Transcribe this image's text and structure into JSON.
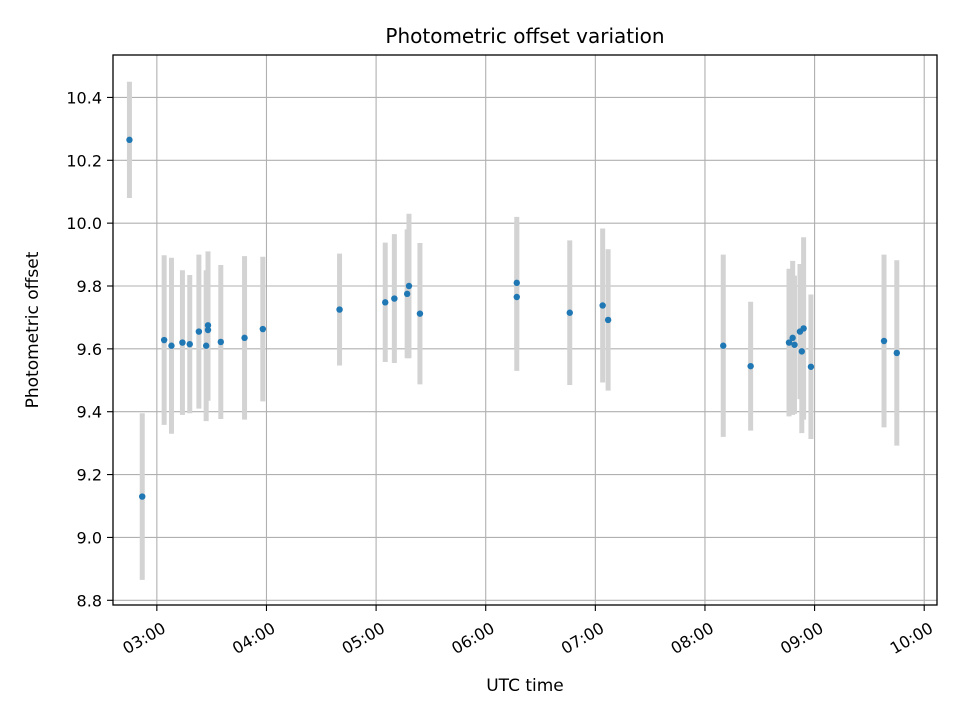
{
  "chart_data": {
    "type": "scatter",
    "title": "Photometric offset variation",
    "xlabel": "UTC time",
    "ylabel": "Photometric offset",
    "xlim": [
      "02:36",
      "10:07"
    ],
    "ylim": [
      8.785,
      10.535
    ],
    "x_ticks": [
      "03:00",
      "04:00",
      "05:00",
      "06:00",
      "07:00",
      "08:00",
      "09:00",
      "10:00"
    ],
    "y_ticks": [
      8.8,
      9.0,
      9.2,
      9.4,
      9.6,
      9.8,
      10.0,
      10.2,
      10.4
    ],
    "grid": true,
    "marker_color": "#1f77b4",
    "errorbar_color": "#d3d3d3",
    "points": [
      {
        "x": "02:45",
        "y": 10.265,
        "err": 0.185
      },
      {
        "x": "02:52",
        "y": 9.13,
        "err": 0.265
      },
      {
        "x": "03:04",
        "y": 9.628,
        "err": 0.27
      },
      {
        "x": "03:08",
        "y": 9.61,
        "err": 0.28
      },
      {
        "x": "03:14",
        "y": 9.62,
        "err": 0.23
      },
      {
        "x": "03:18",
        "y": 9.615,
        "err": 0.22
      },
      {
        "x": "03:23",
        "y": 9.655,
        "err": 0.245
      },
      {
        "x": "03:27",
        "y": 9.61,
        "err": 0.24
      },
      {
        "x": "03:28",
        "y": 9.675,
        "err": 0.235
      },
      {
        "x": "03:28",
        "y": 9.66,
        "err": 0.225
      },
      {
        "x": "03:35",
        "y": 9.622,
        "err": 0.245
      },
      {
        "x": "03:48",
        "y": 9.635,
        "err": 0.26
      },
      {
        "x": "03:58",
        "y": 9.663,
        "err": 0.23
      },
      {
        "x": "04:40",
        "y": 9.725,
        "err": 0.178
      },
      {
        "x": "05:05",
        "y": 9.748,
        "err": 0.19
      },
      {
        "x": "05:10",
        "y": 9.76,
        "err": 0.205
      },
      {
        "x": "05:17",
        "y": 9.775,
        "err": 0.205
      },
      {
        "x": "05:18",
        "y": 9.8,
        "err": 0.23
      },
      {
        "x": "05:24",
        "y": 9.712,
        "err": 0.225
      },
      {
        "x": "06:17",
        "y": 9.81,
        "err": 0.21
      },
      {
        "x": "06:17",
        "y": 9.765,
        "err": 0.235
      },
      {
        "x": "06:46",
        "y": 9.715,
        "err": 0.23
      },
      {
        "x": "07:04",
        "y": 9.738,
        "err": 0.245
      },
      {
        "x": "07:07",
        "y": 9.692,
        "err": 0.225
      },
      {
        "x": "08:10",
        "y": 9.61,
        "err": 0.29
      },
      {
        "x": "08:25",
        "y": 9.545,
        "err": 0.205
      },
      {
        "x": "08:46",
        "y": 9.62,
        "err": 0.235
      },
      {
        "x": "08:48",
        "y": 9.635,
        "err": 0.245
      },
      {
        "x": "08:49",
        "y": 9.613,
        "err": 0.22
      },
      {
        "x": "08:52",
        "y": 9.655,
        "err": 0.215
      },
      {
        "x": "08:53",
        "y": 9.592,
        "err": 0.26
      },
      {
        "x": "08:54",
        "y": 9.665,
        "err": 0.29
      },
      {
        "x": "08:58",
        "y": 9.543,
        "err": 0.23
      },
      {
        "x": "09:38",
        "y": 9.625,
        "err": 0.275
      },
      {
        "x": "09:45",
        "y": 9.587,
        "err": 0.295
      }
    ]
  }
}
